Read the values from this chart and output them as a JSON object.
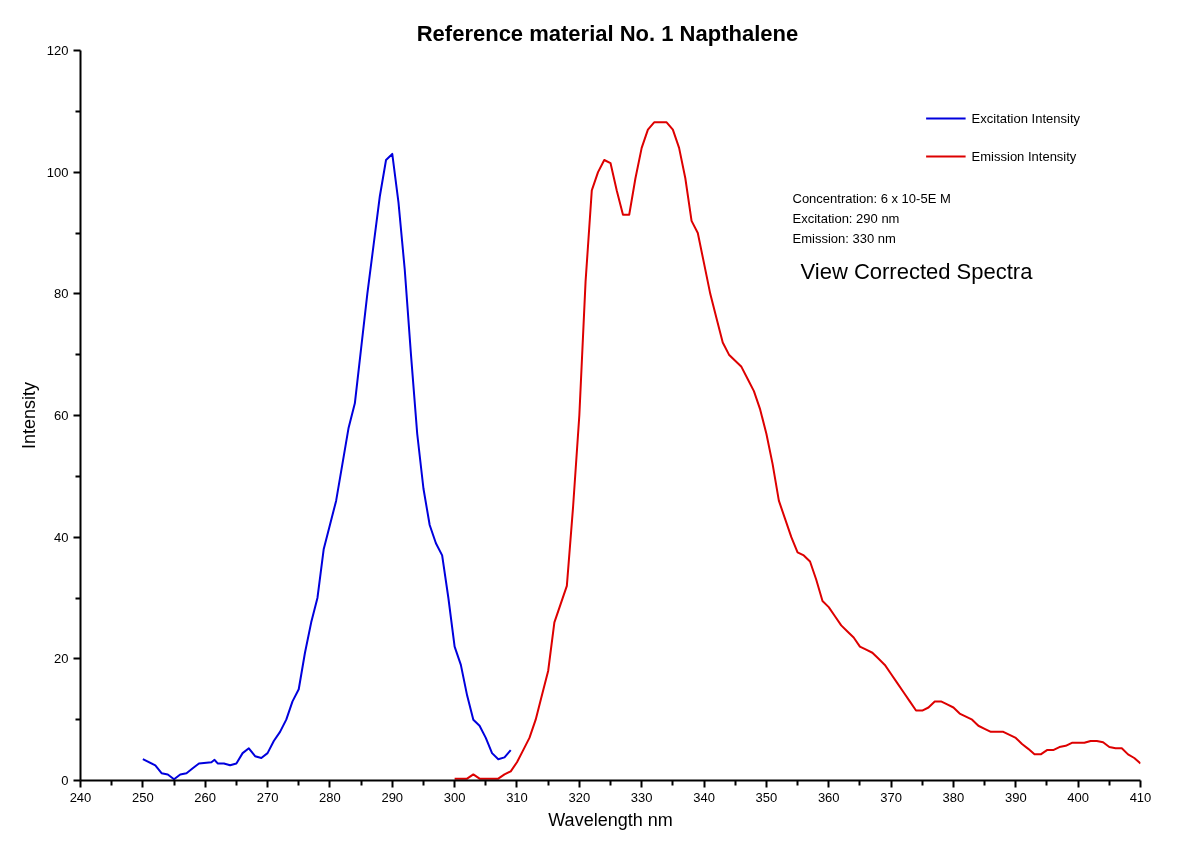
{
  "chart_data": {
    "type": "line",
    "title": "Reference material No. 1  Napthalene",
    "xlabel": "Wavelength nm",
    "ylabel": "Intensity",
    "xlim": [
      240,
      410
    ],
    "xticks": [
      240,
      250,
      260,
      270,
      280,
      290,
      300,
      310,
      320,
      330,
      340,
      350,
      360,
      370,
      380,
      390,
      400,
      410
    ],
    "ylim": [
      0,
      120
    ],
    "yticks": [
      0,
      20,
      40,
      60,
      80,
      100,
      120
    ],
    "grid": false,
    "legend": "top right",
    "marker": "none",
    "line_style": "solid",
    "annotations": [
      "Concentration: 6 x 10-5E M",
      "Excitation: 290 nm",
      "Emission: 330 nm",
      "View Corrected Spectra"
    ],
    "series": [
      {
        "name": "Excitation Intensity",
        "color": "#0000dd",
        "x": [
          250,
          252,
          253,
          254,
          255,
          256,
          257,
          258,
          259,
          261,
          261.5,
          262,
          263,
          264,
          265,
          266,
          267,
          268,
          269,
          270,
          271,
          272,
          273,
          274,
          275,
          276,
          277,
          278,
          279,
          280,
          281,
          282,
          283,
          284,
          285,
          286,
          287,
          288,
          289,
          290,
          291,
          292,
          293,
          294,
          295,
          296,
          297,
          298,
          299,
          300,
          301,
          302,
          303,
          304,
          305,
          306,
          307,
          308,
          309
        ],
        "values": [
          3.5,
          2.5,
          1.2,
          1,
          0.2,
          1,
          1.2,
          2,
          2.8,
          3,
          3.4,
          2.8,
          2.8,
          2.5,
          2.8,
          4.5,
          5.3,
          4,
          3.7,
          4.5,
          6.5,
          8,
          10,
          13,
          15,
          21,
          26,
          30,
          38,
          42,
          46,
          52,
          58,
          62,
          71,
          80,
          88,
          96,
          102,
          103,
          95,
          84,
          70,
          57,
          48,
          42,
          39,
          37,
          30,
          22,
          19,
          14,
          10,
          9,
          7,
          4.5,
          3.5,
          3.8,
          5
        ]
      },
      {
        "name": "Emission Intensity",
        "color": "#dd0000",
        "x": [
          300,
          302,
          303,
          304,
          307,
          308,
          309,
          310,
          311,
          312,
          313,
          314,
          315,
          316,
          317,
          318,
          319,
          320,
          321,
          322,
          323,
          324,
          325,
          326,
          327,
          328,
          329,
          330,
          331,
          332,
          334,
          335,
          336,
          337,
          338,
          339,
          340,
          341,
          342,
          343,
          344,
          345,
          346,
          347,
          348,
          349,
          350,
          351,
          352,
          353,
          354,
          355,
          356,
          357,
          358,
          359,
          360,
          361,
          362,
          363,
          364,
          365,
          366,
          367,
          368,
          369,
          370,
          371,
          372,
          373,
          374,
          375,
          376,
          377,
          378,
          379,
          380,
          381,
          382,
          383,
          384,
          385,
          386,
          387,
          388,
          389,
          390,
          391,
          392,
          393,
          394,
          395,
          396,
          397,
          398,
          399,
          400,
          401,
          402,
          403,
          404,
          405,
          406,
          407,
          408,
          409,
          410
        ],
        "values": [
          0.3,
          0.3,
          1,
          0.3,
          0.3,
          1,
          1.5,
          3,
          5,
          7,
          10,
          14,
          18,
          26,
          29,
          32,
          45,
          60,
          82,
          97,
          100,
          102,
          101.5,
          97,
          93,
          93,
          99,
          104,
          107,
          108.2,
          108.2,
          107,
          104,
          99,
          92,
          90,
          85,
          80,
          76,
          72,
          70,
          69,
          68,
          66,
          64,
          61,
          57,
          52,
          46,
          43,
          40,
          37.5,
          37,
          36,
          33,
          29.5,
          28.5,
          27,
          25.5,
          24.5,
          23.5,
          22,
          21.5,
          21,
          20,
          19,
          17.5,
          16,
          14.5,
          13,
          11.5,
          11.5,
          12,
          13,
          13,
          12.5,
          12,
          11,
          10.5,
          10,
          9,
          8.5,
          8,
          8,
          8,
          7.5,
          7,
          6,
          5.2,
          4.3,
          4.3,
          5,
          5,
          5.5,
          5.7,
          6.2,
          6.2,
          6.2,
          6.5,
          6.5,
          6.3,
          5.5,
          5.3,
          5.3,
          4.3,
          3.7,
          2.8
        ]
      }
    ]
  }
}
